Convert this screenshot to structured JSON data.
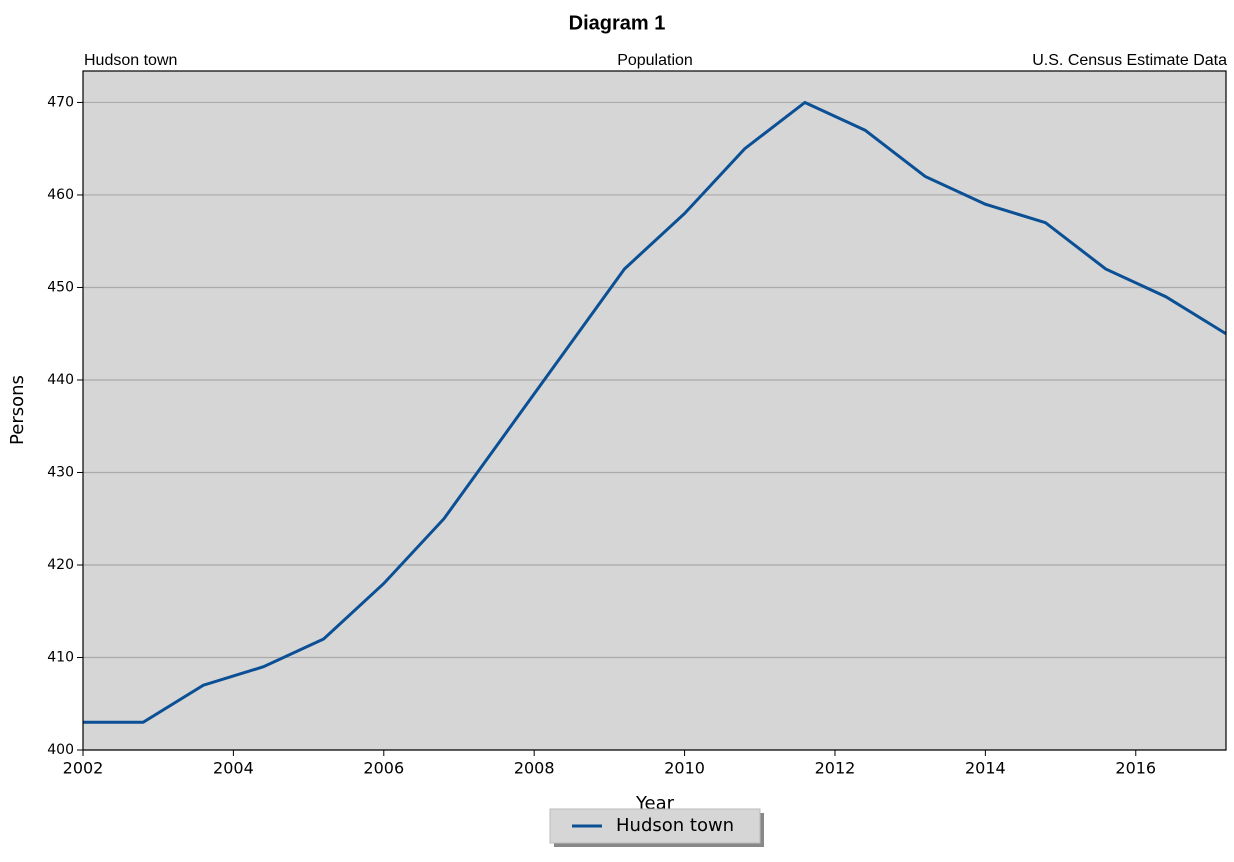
{
  "chart_data": {
    "type": "line",
    "title": "Diagram 1",
    "subtitle_left": "Hudson town",
    "subtitle_center": "Population",
    "subtitle_right": "U.S. Census Estimate Data",
    "xlabel": "Year",
    "ylabel": "Persons",
    "x": [
      2002,
      2002.8,
      2003.6,
      2004.4,
      2005.2,
      2006.0,
      2006.8,
      2007.6,
      2008.4,
      2009.2,
      2010.0,
      2010.8,
      2011.6,
      2012.4,
      2013.2,
      2014.0,
      2014.8,
      2015.6,
      2016.4,
      2017.2
    ],
    "series": [
      {
        "name": "Hudson town",
        "color": "#0b4f94",
        "values": [
          403,
          403,
          407,
          409,
          412,
          418,
          425,
          434,
          443,
          452,
          458,
          465,
          470,
          467,
          462,
          459,
          457,
          452,
          449,
          445
        ]
      }
    ],
    "xlim": [
      2002,
      2017.2
    ],
    "xticks": [
      2002,
      2004,
      2006,
      2008,
      2010,
      2012,
      2014,
      2016
    ],
    "ylim": [
      400,
      473.4
    ],
    "yticks": [
      400,
      410,
      420,
      430,
      440,
      450,
      460,
      470
    ],
    "grid": true,
    "legend": "bottom"
  }
}
